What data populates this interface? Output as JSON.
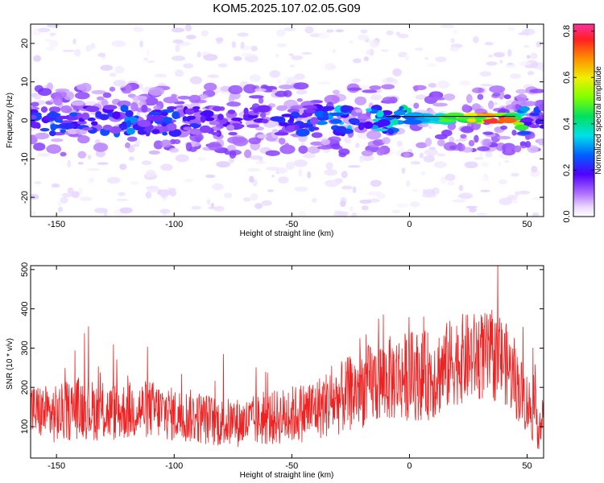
{
  "title": "KOM5.2025.107.02.05.G09",
  "colors": {
    "snr_line": "#ee2222",
    "ridge": "#000000"
  },
  "chart_data": [
    {
      "type": "heatmap",
      "xlabel": "Height of straight line (km)",
      "ylabel": "Frequency (Hz)",
      "xlim": [
        -161,
        57
      ],
      "ylim": [
        -25,
        25
      ],
      "xticks": [
        -150,
        -100,
        -50,
        0,
        50
      ],
      "yticks": [
        -20,
        -10,
        0,
        10,
        20
      ],
      "xtick_labels": [
        "-150",
        "-100",
        "-50",
        "0",
        "50"
      ],
      "ytick_labels": [
        "-20",
        "-10",
        "0",
        "10",
        "20"
      ],
      "colorbar": {
        "label": "Normalized spectral amplitude",
        "range": [
          0,
          0.83
        ],
        "ticks": [
          0.0,
          0.2,
          0.4,
          0.6,
          0.8
        ],
        "tick_labels": [
          "0.0",
          "0.2",
          "0.4",
          "0.6",
          "0.8"
        ]
      },
      "ridge": {
        "x": [
          -10,
          45
        ],
        "y": 0.5
      },
      "band": [
        {
          "x": -160,
          "amp": 0.2
        },
        {
          "x": -150,
          "amp": 0.25
        },
        {
          "x": -140,
          "amp": 0.22
        },
        {
          "x": -130,
          "amp": 0.2
        },
        {
          "x": -120,
          "amp": 0.25
        },
        {
          "x": -110,
          "amp": 0.22
        },
        {
          "x": -100,
          "amp": 0.2
        },
        {
          "x": -90,
          "amp": 0.18
        },
        {
          "x": -80,
          "amp": 0.15
        },
        {
          "x": -70,
          "amp": 0.15
        },
        {
          "x": -60,
          "amp": 0.18
        },
        {
          "x": -50,
          "amp": 0.2
        },
        {
          "x": -40,
          "amp": 0.22
        },
        {
          "x": -30,
          "amp": 0.28
        },
        {
          "x": -20,
          "amp": 0.3
        },
        {
          "x": -10,
          "amp": 0.3
        },
        {
          "x": 0,
          "amp": 0.35
        },
        {
          "x": 10,
          "amp": 0.45
        },
        {
          "x": 20,
          "amp": 0.55
        },
        {
          "x": 30,
          "amp": 0.75
        },
        {
          "x": 40,
          "amp": 0.8
        },
        {
          "x": 45,
          "amp": 0.6
        },
        {
          "x": 50,
          "amp": 0.25
        },
        {
          "x": 55,
          "amp": 0.2
        }
      ]
    },
    {
      "type": "line",
      "xlabel": "Height of straight line (km)",
      "ylabel": "SNR (10 * v/v)",
      "xlim": [
        -161,
        57
      ],
      "ylim": [
        20,
        510
      ],
      "xticks": [
        -150,
        -100,
        -50,
        0,
        50
      ],
      "yticks": [
        100,
        200,
        300,
        400,
        500
      ],
      "xtick_labels": [
        "-150",
        "-100",
        "-50",
        "0",
        "50"
      ],
      "ytick_labels": [
        "100",
        "200",
        "300",
        "400",
        "500"
      ],
      "series": [
        {
          "x": [
            -160,
            -150,
            -140,
            -130,
            -120,
            -110,
            -100,
            -90,
            -80,
            -70,
            -60,
            -50,
            -40,
            -30,
            -20,
            -10,
            0,
            10,
            20,
            30,
            40,
            50,
            56
          ],
          "values": [
            140,
            130,
            150,
            135,
            140,
            145,
            130,
            125,
            110,
            110,
            120,
            130,
            145,
            170,
            200,
            220,
            230,
            230,
            270,
            280,
            270,
            160,
            100
          ],
          "spread": [
            60,
            65,
            70,
            65,
            65,
            65,
            60,
            60,
            55,
            55,
            60,
            65,
            70,
            80,
            90,
            95,
            100,
            100,
            100,
            100,
            95,
            70,
            60
          ]
        }
      ]
    }
  ]
}
